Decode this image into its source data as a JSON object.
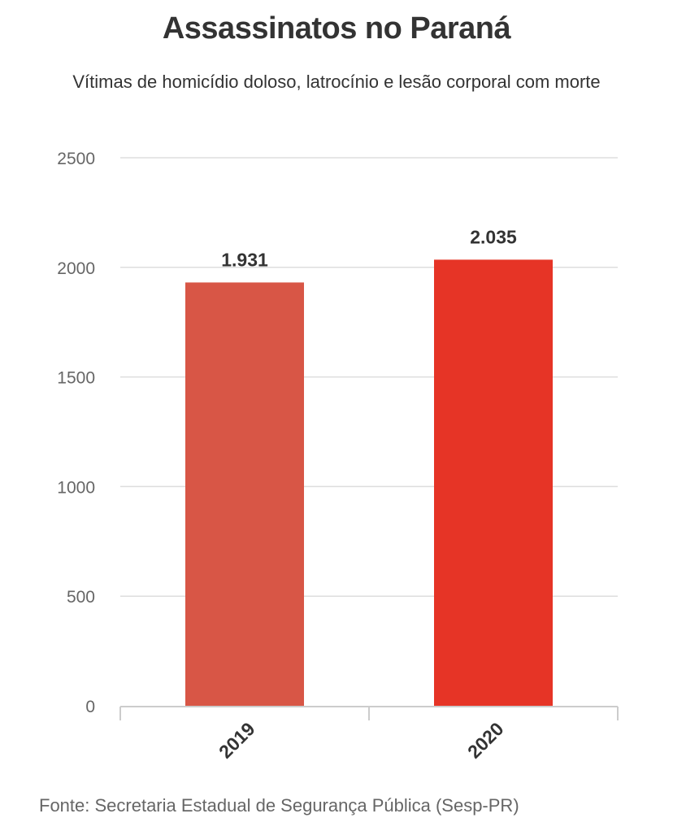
{
  "title": "Assassinatos no Paraná",
  "subtitle": "Vítimas de homicídio doloso, latrocínio e lesão corporal com morte",
  "source": "Fonte: Secretaria Estadual de Segurança Pública (Sesp-PR)",
  "chart_data": {
    "type": "bar",
    "categories": [
      "2019",
      "2020"
    ],
    "values": [
      1931,
      2035
    ],
    "data_labels": [
      "1.931",
      "2.035"
    ],
    "colors": [
      "#d85646",
      "#e63426"
    ],
    "ylim": [
      0,
      2500
    ],
    "yticks": [
      0,
      500,
      1000,
      1500,
      2000,
      2500
    ],
    "grid": true,
    "x_tick_rotation": -45
  }
}
